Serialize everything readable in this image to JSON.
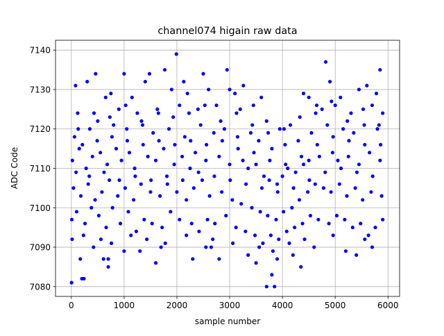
{
  "chart_data": {
    "type": "scatter",
    "title": "channel074 higain raw data",
    "xlabel": "sample number",
    "ylabel": "ADC Code",
    "xlim": [
      -300,
      6220
    ],
    "ylim": [
      7077.5,
      7142.5
    ],
    "xticks": [
      0,
      1000,
      2000,
      3000,
      4000,
      5000,
      6000
    ],
    "yticks": [
      7080,
      7090,
      7100,
      7110,
      7120,
      7130,
      7140
    ],
    "grid": true,
    "marker_color": "#0000ff",
    "series": [
      {
        "points": [
          [
            5,
            7081
          ],
          [
            200,
            7082
          ],
          [
            240,
            7082
          ],
          [
            170,
            7087
          ],
          [
            610,
            7087
          ],
          [
            700,
            7085
          ],
          [
            700,
            7087
          ],
          [
            420,
            7090
          ],
          [
            1000,
            7089
          ],
          [
            1300,
            7089
          ],
          [
            1600,
            7086
          ],
          [
            1700,
            7090
          ],
          [
            2300,
            7087
          ],
          [
            2550,
            7090
          ],
          [
            2650,
            7090
          ],
          [
            2800,
            7087
          ],
          [
            3350,
            7088
          ],
          [
            3500,
            7086
          ],
          [
            3700,
            7080
          ],
          [
            3850,
            7080
          ],
          [
            3800,
            7083
          ],
          [
            3900,
            7087
          ],
          [
            4200,
            7088
          ],
          [
            4350,
            7085
          ],
          [
            4600,
            7090
          ],
          [
            5200,
            7089
          ],
          [
            5400,
            7088
          ],
          [
            5700,
            7090
          ],
          [
            2950,
            7135
          ],
          [
            1990,
            7139
          ],
          [
            4820,
            7137
          ],
          [
            1000,
            7134
          ],
          [
            1480,
            7134
          ],
          [
            2500,
            7134
          ],
          [
            460,
            7134
          ],
          [
            1770,
            7135
          ],
          [
            5850,
            7135
          ],
          [
            2130,
            7132
          ],
          [
            3260,
            7131
          ],
          [
            4900,
            7132
          ],
          [
            80,
            7131
          ],
          [
            300,
            7132
          ],
          [
            1400,
            7132
          ],
          [
            1900,
            7130
          ],
          [
            2600,
            7130
          ],
          [
            3000,
            7130
          ],
          [
            3100,
            7129
          ],
          [
            3600,
            7128
          ],
          [
            4400,
            7129
          ],
          [
            4500,
            7128
          ],
          [
            5100,
            7128
          ],
          [
            5450,
            7130
          ],
          [
            5600,
            7131
          ],
          [
            5780,
            7129
          ],
          [
            650,
            7128
          ],
          [
            750,
            7129
          ],
          [
            1150,
            7128
          ],
          [
            2200,
            7129
          ],
          [
            3450,
            7126
          ],
          [
            4650,
            7126
          ],
          [
            120,
            7124
          ],
          [
            900,
            7125
          ],
          [
            1250,
            7124
          ],
          [
            1650,
            7124
          ],
          [
            2050,
            7126
          ],
          [
            2400,
            7125
          ],
          [
            2750,
            7126
          ],
          [
            3200,
            7125
          ],
          [
            3700,
            7122
          ],
          [
            3950,
            7120
          ],
          [
            4150,
            7121
          ],
          [
            4750,
            7125
          ],
          [
            5000,
            7126
          ],
          [
            5300,
            7124
          ],
          [
            5700,
            7126
          ],
          [
            5900,
            7124
          ],
          [
            60,
            7118
          ],
          [
            350,
            7120
          ],
          [
            500,
            7122
          ],
          [
            800,
            7121
          ],
          [
            1050,
            7120
          ],
          [
            1350,
            7121
          ],
          [
            1550,
            7119
          ],
          [
            1850,
            7120
          ],
          [
            2150,
            7118
          ],
          [
            2450,
            7121
          ],
          [
            2700,
            7119
          ],
          [
            2900,
            7120
          ],
          [
            3150,
            7118
          ],
          [
            3400,
            7119
          ],
          [
            3550,
            7117
          ],
          [
            3800,
            7115
          ],
          [
            4050,
            7116
          ],
          [
            4300,
            7117
          ],
          [
            4550,
            7119
          ],
          [
            4850,
            7121
          ],
          [
            5150,
            7120
          ],
          [
            5350,
            7119
          ],
          [
            5550,
            7121
          ],
          [
            5800,
            7120
          ],
          [
            20,
            7112
          ],
          [
            150,
            7115
          ],
          [
            280,
            7110
          ],
          [
            400,
            7113
          ],
          [
            550,
            7114
          ],
          [
            680,
            7111
          ],
          [
            850,
            7115
          ],
          [
            950,
            7112
          ],
          [
            1100,
            7114
          ],
          [
            1200,
            7110
          ],
          [
            1450,
            7113
          ],
          [
            1600,
            7112
          ],
          [
            1750,
            7115
          ],
          [
            1950,
            7111
          ],
          [
            2100,
            7113
          ],
          [
            2250,
            7110
          ],
          [
            2350,
            7114
          ],
          [
            2550,
            7112
          ],
          [
            2800,
            7113
          ],
          [
            3000,
            7111
          ],
          [
            3250,
            7112
          ],
          [
            3350,
            7110
          ],
          [
            3500,
            7111
          ],
          [
            3650,
            7108
          ],
          [
            3750,
            7107
          ],
          [
            3900,
            7106
          ],
          [
            4000,
            7108
          ],
          [
            4100,
            7110
          ],
          [
            4250,
            7109
          ],
          [
            4400,
            7111
          ],
          [
            4500,
            7112
          ],
          [
            4700,
            7113
          ],
          [
            4950,
            7114
          ],
          [
            5050,
            7112
          ],
          [
            5250,
            7113
          ],
          [
            5450,
            7111
          ],
          [
            5650,
            7114
          ],
          [
            5850,
            7112
          ],
          [
            40,
            7105
          ],
          [
            180,
            7103
          ],
          [
            320,
            7106
          ],
          [
            450,
            7102
          ],
          [
            580,
            7104
          ],
          [
            720,
            7107
          ],
          [
            880,
            7103
          ],
          [
            1020,
            7105
          ],
          [
            1180,
            7102
          ],
          [
            1320,
            7106
          ],
          [
            1500,
            7104
          ],
          [
            1680,
            7103
          ],
          [
            1820,
            7106
          ],
          [
            2000,
            7104
          ],
          [
            2180,
            7102
          ],
          [
            2320,
            7105
          ],
          [
            2480,
            7107
          ],
          [
            2620,
            7103
          ],
          [
            2850,
            7104
          ],
          [
            3050,
            7102
          ],
          [
            3220,
            7101
          ],
          [
            3420,
            7100
          ],
          [
            3580,
            7099
          ],
          [
            3720,
            7098
          ],
          [
            3880,
            7097
          ],
          [
            4020,
            7099
          ],
          [
            4180,
            7100
          ],
          [
            4320,
            7102
          ],
          [
            4480,
            7104
          ],
          [
            4620,
            7106
          ],
          [
            4780,
            7105
          ],
          [
            4920,
            7104
          ],
          [
            5080,
            7106
          ],
          [
            5220,
            7103
          ],
          [
            5380,
            7105
          ],
          [
            5520,
            7102
          ],
          [
            5680,
            7104
          ],
          [
            5880,
            7103
          ],
          [
            10,
            7097
          ],
          [
            100,
            7099
          ],
          [
            260,
            7096
          ],
          [
            380,
            7100
          ],
          [
            520,
            7098
          ],
          [
            660,
            7095
          ],
          [
            780,
            7100
          ],
          [
            930,
            7096
          ],
          [
            1080,
            7099
          ],
          [
            1230,
            7094
          ],
          [
            1380,
            7097
          ],
          [
            1530,
            7096
          ],
          [
            1720,
            7095
          ],
          [
            1880,
            7099
          ],
          [
            2050,
            7097
          ],
          [
            2280,
            7096
          ],
          [
            2420,
            7094
          ],
          [
            2580,
            7097
          ],
          [
            2720,
            7096
          ],
          [
            2930,
            7098
          ],
          [
            3120,
            7095
          ],
          [
            3300,
            7094
          ],
          [
            3480,
            7093
          ],
          [
            3630,
            7091
          ],
          [
            3780,
            7093
          ],
          [
            3930,
            7092
          ],
          [
            4080,
            7094
          ],
          [
            4230,
            7095
          ],
          [
            4380,
            7096
          ],
          [
            4530,
            7098
          ],
          [
            4680,
            7097
          ],
          [
            4880,
            7096
          ],
          [
            5030,
            7098
          ],
          [
            5180,
            7097
          ],
          [
            5330,
            7095
          ],
          [
            5480,
            7096
          ],
          [
            5630,
            7093
          ],
          [
            5760,
            7095
          ],
          [
            5900,
            7097
          ],
          [
            15,
            7092
          ],
          [
            230,
            7093
          ],
          [
            560,
            7092
          ],
          [
            760,
            7091
          ],
          [
            1130,
            7093
          ],
          [
            1430,
            7092
          ],
          [
            1780,
            7091
          ],
          [
            2180,
            7093
          ],
          [
            2680,
            7092
          ],
          [
            3060,
            7091
          ],
          [
            3560,
            7090
          ],
          [
            3820,
            7089
          ],
          [
            4130,
            7091
          ],
          [
            4420,
            7092
          ],
          [
            4960,
            7093
          ],
          [
            5560,
            7092
          ],
          [
            90,
            7109
          ],
          [
            210,
            7116
          ],
          [
            340,
            7108
          ],
          [
            490,
            7117
          ],
          [
            620,
            7109
          ],
          [
            770,
            7118
          ],
          [
            910,
            7107
          ],
          [
            1060,
            7117
          ],
          [
            1210,
            7108
          ],
          [
            1360,
            7116
          ],
          [
            1510,
            7107
          ],
          [
            1660,
            7117
          ],
          [
            1810,
            7108
          ],
          [
            1960,
            7116
          ],
          [
            2110,
            7107
          ],
          [
            2260,
            7117
          ],
          [
            2410,
            7109
          ],
          [
            2560,
            7116
          ],
          [
            2710,
            7108
          ],
          [
            2860,
            7117
          ],
          [
            3010,
            7107
          ],
          [
            3160,
            7115
          ],
          [
            3310,
            7106
          ],
          [
            3460,
            7114
          ],
          [
            3610,
            7105
          ],
          [
            3760,
            7112
          ],
          [
            3910,
            7104
          ],
          [
            4060,
            7111
          ],
          [
            4210,
            7105
          ],
          [
            4360,
            7113
          ],
          [
            4510,
            7107
          ],
          [
            4660,
            7116
          ],
          [
            4810,
            7109
          ],
          [
            4960,
            7118
          ],
          [
            5110,
            7110
          ],
          [
            5260,
            7117
          ],
          [
            5410,
            7109
          ],
          [
            5560,
            7116
          ],
          [
            5710,
            7108
          ],
          [
            5860,
            7116
          ],
          [
            130,
            7120
          ],
          [
            430,
            7124
          ],
          [
            730,
            7123
          ],
          [
            1030,
            7126
          ],
          [
            1330,
            7122
          ],
          [
            1630,
            7125
          ],
          [
            1930,
            7123
          ],
          [
            2230,
            7124
          ],
          [
            2530,
            7126
          ],
          [
            2830,
            7122
          ],
          [
            3130,
            7124
          ],
          [
            3430,
            7121
          ],
          [
            3730,
            7119
          ],
          [
            4030,
            7120
          ],
          [
            4330,
            7123
          ],
          [
            4630,
            7124
          ],
          [
            4930,
            7127
          ],
          [
            5230,
            7122
          ],
          [
            5530,
            7125
          ],
          [
            5830,
            7121
          ]
        ]
      }
    ]
  }
}
